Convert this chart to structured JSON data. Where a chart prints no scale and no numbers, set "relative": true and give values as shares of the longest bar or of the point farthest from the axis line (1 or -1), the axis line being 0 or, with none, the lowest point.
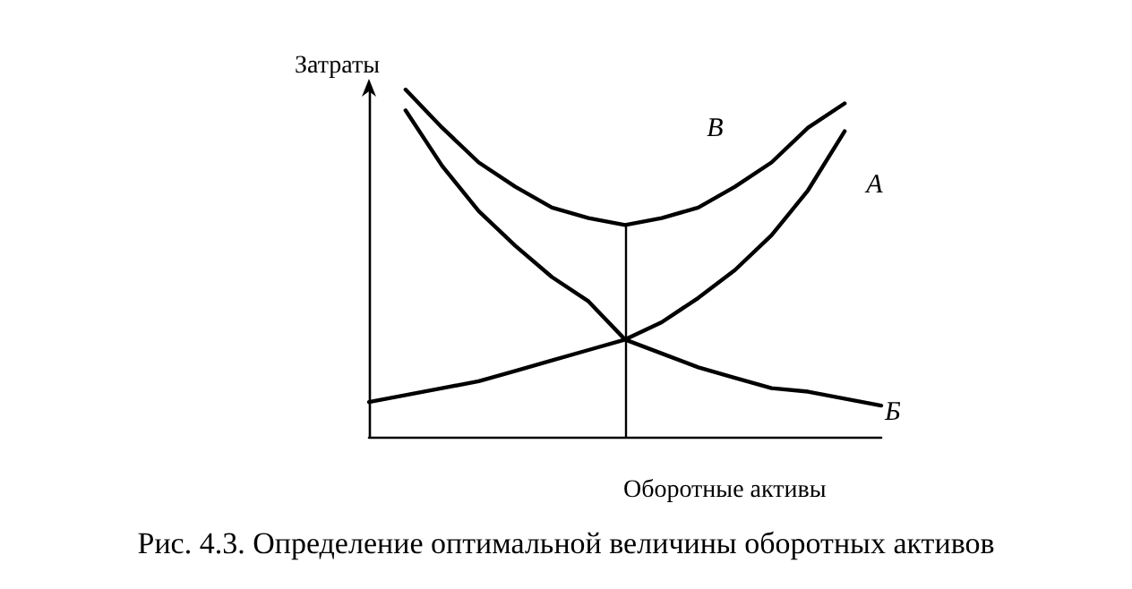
{
  "chart_data": {
    "type": "line",
    "relative": true,
    "ylabel": "Затраты",
    "xlabel": "Оборотные активы",
    "categories": [
      null,
      null,
      null,
      null,
      null,
      null,
      null,
      null,
      null,
      null,
      null,
      null,
      null,
      null,
      null
    ],
    "series": [
      {
        "name": "В",
        "color": "#000000",
        "values": [
          null,
          1,
          0.89,
          0.79,
          0.72,
          0.66,
          0.63,
          0.61,
          0.63,
          0.66,
          0.72,
          0.79,
          0.89,
          0.96,
          null
        ]
      },
      {
        "name": "А",
        "color": "#000000",
        "values": [
          0.1,
          0.12,
          0.14,
          0.16,
          0.19,
          0.22,
          0.25,
          0.28,
          0.33,
          0.4,
          0.48,
          0.58,
          0.71,
          0.88,
          null
        ]
      },
      {
        "name": "Б",
        "color": "#000000",
        "values": [
          null,
          0.94,
          0.78,
          0.65,
          0.55,
          0.46,
          0.39,
          0.28,
          0.24,
          0.2,
          0.17,
          0.14,
          0.13,
          0.11,
          0.09
        ]
      }
    ],
    "annotations": [
      "Рис. 4.3. Определение оптимальной величины оборотных активов"
    ],
    "grid": false,
    "legend": false,
    "marker": "none",
    "line_style": "solid"
  }
}
